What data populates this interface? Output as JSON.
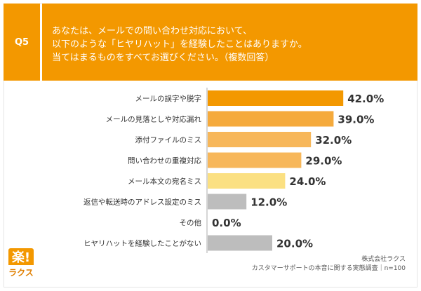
{
  "question": {
    "number": "Q5",
    "lines": [
      "あなたは、メールでの問い合わせ対応において、",
      "以下のような「ヒヤリハット」を経験したことはありますか。",
      "当てはまるものをすべてお選びください。（複数回答）"
    ]
  },
  "chart_data": {
    "type": "bar",
    "orientation": "horizontal",
    "categories": [
      "メールの誤字や脱字",
      "メールの見落としや対応漏れ",
      "添付ファイルのミス",
      "問い合わせの重複対応",
      "メール本文の宛名ミス",
      "返信や転送時のアドレス設定のミス",
      "その他",
      "ヒヤリハットを経験したことがない"
    ],
    "values": [
      42.0,
      39.0,
      32.0,
      29.0,
      24.0,
      12.0,
      0.0,
      20.0
    ],
    "value_labels": [
      "42.0%",
      "39.0%",
      "32.0%",
      "29.0%",
      "24.0%",
      "12.0%",
      "0.0%",
      "20.0%"
    ],
    "colors": [
      "#f39800",
      "#f5aa3c",
      "#f7b75a",
      "#f7b75a",
      "#fbe082",
      "#bdbdbd",
      "#bdbdbd",
      "#bdbdbd"
    ],
    "xlim": [
      0,
      60
    ],
    "grid": false,
    "legend": "none"
  },
  "logo": {
    "mark": "楽!",
    "name": "ラクス"
  },
  "source": {
    "company": "株式会社ラクス",
    "survey": "カスタマーサポートの本音に関する実態調査｜n=100"
  }
}
